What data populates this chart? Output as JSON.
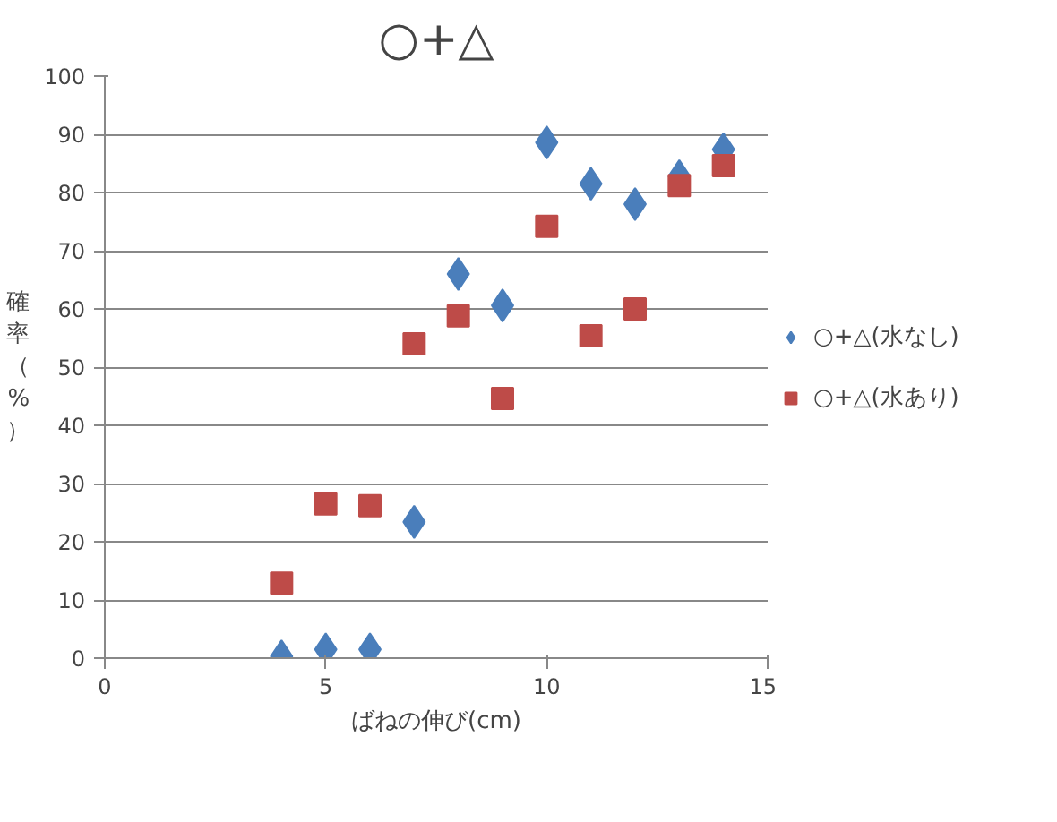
{
  "chart_data": {
    "type": "scatter",
    "title": "○+△",
    "xlabel": "ばねの伸び(cm)",
    "ylabel": "確率（%）",
    "xlim": [
      0,
      15
    ],
    "xticks": [
      0,
      5,
      10,
      15
    ],
    "ylim": [
      0,
      100
    ],
    "yticks": [
      0,
      10,
      20,
      30,
      40,
      50,
      60,
      70,
      80,
      90,
      100
    ],
    "grid": "y",
    "legend": "right",
    "series": [
      {
        "name": "○+△(水なし)",
        "color": "#4a7ebb",
        "marker": "diamond",
        "x": [
          4,
          5,
          6,
          7,
          8,
          9,
          10,
          11,
          12,
          13,
          14
        ],
        "values": [
          0.3,
          1.5,
          1.5,
          23.4,
          66,
          60.6,
          88.6,
          81.5,
          78,
          82.8,
          87.4
        ]
      },
      {
        "name": "○+△(水あり)",
        "color": "#be4b48",
        "marker": "square",
        "x": [
          4,
          5,
          6,
          7,
          8,
          9,
          10,
          11,
          12,
          13,
          14
        ],
        "values": [
          12.9,
          26.5,
          26.2,
          54,
          58.8,
          44.6,
          74.2,
          55.4,
          60,
          81.2,
          84.6
        ]
      }
    ]
  }
}
